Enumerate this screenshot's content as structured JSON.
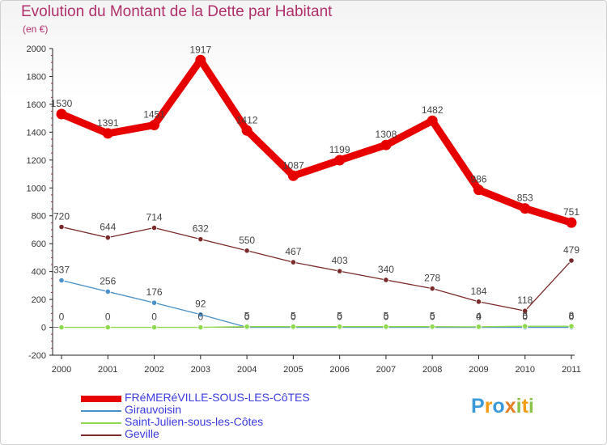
{
  "title": "Evolution du Montant de la Dette par Habitant",
  "unit": "(en €)",
  "logo": {
    "text": "Proxiti",
    "letters": [
      {
        "ch": "P",
        "color": "#3a9ad9"
      },
      {
        "ch": "r",
        "color": "#f39c12"
      },
      {
        "ch": "o",
        "color": "#3a9ad9"
      },
      {
        "ch": "x",
        "color": "#e67e22"
      },
      {
        "ch": "i",
        "color": "#8bc34a"
      },
      {
        "ch": "t",
        "color": "#f39c12"
      },
      {
        "ch": "i",
        "color": "#8bc34a"
      }
    ]
  },
  "chart_data": {
    "type": "line",
    "title": "Evolution du Montant de la Dette par Habitant",
    "ylabel": "(en €)",
    "xlabel": "",
    "ylim": [
      -200,
      2000
    ],
    "yticks": [
      -200,
      0,
      200,
      400,
      600,
      800,
      1000,
      1200,
      1400,
      1600,
      1800,
      2000
    ],
    "grid": false,
    "legend_position": "bottom-left",
    "categories": [
      "2000",
      "2001",
      "2002",
      "2003",
      "2004",
      "2005",
      "2006",
      "2007",
      "2008",
      "2009",
      "2010",
      "2011"
    ],
    "series": [
      {
        "name": "FRéMERéVILLE-SOUS-LES-CôTES",
        "color": "#e60000",
        "width": 9,
        "values": [
          1530,
          1391,
          1451,
          1917,
          1412,
          1087,
          1199,
          1308,
          1482,
          986,
          853,
          751
        ],
        "labels": [
          "1530",
          "1391",
          "1451",
          "1917",
          "1412",
          "1087",
          "1199",
          "1308",
          "1482",
          "986",
          "853",
          "751"
        ]
      },
      {
        "name": "Girauvoisin",
        "color": "#4a90c8",
        "width": 1.3,
        "values": [
          337,
          256,
          176,
          92,
          0,
          0,
          0,
          0,
          0,
          0,
          0,
          0
        ],
        "labels": [
          "337",
          "256",
          "176",
          "92",
          "0",
          "0",
          "0",
          "0",
          "0",
          "0",
          "0",
          "0"
        ]
      },
      {
        "name": "Saint-Julien-sous-les-Côtes",
        "color": "#8fd94f",
        "width": 1.3,
        "values": [
          0,
          0,
          0,
          0,
          5,
          5,
          5,
          5,
          5,
          4,
          8,
          8
        ],
        "labels": [
          "0",
          "0",
          "0",
          "0",
          "5",
          "5",
          "5",
          "5",
          "5",
          "4",
          "8",
          "8"
        ]
      },
      {
        "name": "Geville",
        "color": "#7a2a2a",
        "width": 1.3,
        "values": [
          720,
          644,
          714,
          632,
          550,
          467,
          403,
          340,
          278,
          184,
          118,
          479
        ],
        "labels": [
          "720",
          "644",
          "714",
          "632",
          "550",
          "467",
          "403",
          "340",
          "278",
          "184",
          "118",
          "479"
        ]
      }
    ]
  }
}
